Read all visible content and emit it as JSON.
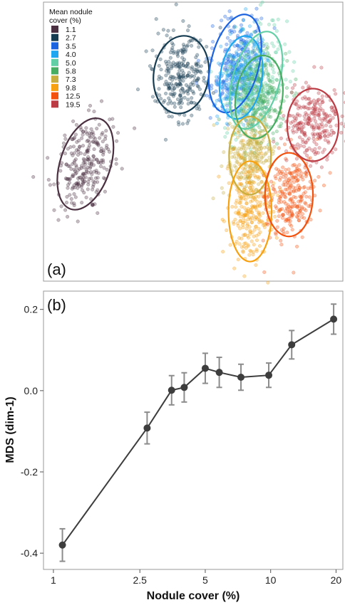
{
  "chart_data": [
    {
      "panel": "(a)",
      "type": "scatter",
      "legend": {
        "title_lines": [
          "Mean nodule",
          "cover (%)"
        ],
        "entries": [
          {
            "label": "1.1",
            "color": "#4a3040"
          },
          {
            "label": "2.7",
            "color": "#163c52"
          },
          {
            "label": "3.5",
            "color": "#1c63e0"
          },
          {
            "label": "4.0",
            "color": "#1ea6f0"
          },
          {
            "label": "5.0",
            "color": "#62cfa6"
          },
          {
            "label": "5.8",
            "color": "#46ad62"
          },
          {
            "label": "7.3",
            "color": "#c8ae3e"
          },
          {
            "label": "9.8",
            "color": "#f7a010"
          },
          {
            "label": "12.5",
            "color": "#f2510e"
          },
          {
            "label": "19.5",
            "color": "#bb3c44"
          }
        ],
        "position": "top-left"
      },
      "clusters": [
        {
          "label": "1.1",
          "cx": 0.14,
          "cy": 0.58,
          "rx": 0.084,
          "ry": 0.17,
          "tilt": 18
        },
        {
          "label": "2.7",
          "cx": 0.46,
          "cy": 0.26,
          "rx": 0.092,
          "ry": 0.14,
          "tilt": 8
        },
        {
          "label": "3.5",
          "cx": 0.64,
          "cy": 0.22,
          "rx": 0.08,
          "ry": 0.18,
          "tilt": 14
        },
        {
          "label": "4.0",
          "cx": 0.66,
          "cy": 0.27,
          "rx": 0.07,
          "ry": 0.15,
          "tilt": 8
        },
        {
          "label": "5.0",
          "cx": 0.71,
          "cy": 0.28,
          "rx": 0.078,
          "ry": 0.18,
          "tilt": 16
        },
        {
          "label": "5.8",
          "cx": 0.72,
          "cy": 0.34,
          "rx": 0.078,
          "ry": 0.15,
          "tilt": 8
        },
        {
          "label": "7.3",
          "cx": 0.69,
          "cy": 0.55,
          "rx": 0.07,
          "ry": 0.14,
          "tilt": 0
        },
        {
          "label": "9.8",
          "cx": 0.69,
          "cy": 0.75,
          "rx": 0.072,
          "ry": 0.18,
          "tilt": 0
        },
        {
          "label": "12.5",
          "cx": 0.82,
          "cy": 0.69,
          "rx": 0.08,
          "ry": 0.15,
          "tilt": 0
        },
        {
          "label": "19.5",
          "cx": 0.9,
          "cy": 0.44,
          "rx": 0.086,
          "ry": 0.13,
          "tilt": 0
        }
      ]
    },
    {
      "panel": "(b)",
      "type": "line",
      "xlabel": "Nodule cover (%)",
      "ylabel": "MDS (dim-1)",
      "x_scale": "log",
      "xlim": [
        0.9,
        21.5
      ],
      "ylim": [
        -0.44,
        0.245
      ],
      "x_ticks": [
        1,
        2.5,
        5,
        10,
        20
      ],
      "x_tick_labels": [
        "1",
        "2.5",
        "5",
        "10",
        "20"
      ],
      "y_ticks": [
        -0.4,
        -0.2,
        0.0,
        0.2
      ],
      "y_tick_labels": [
        "-0.4",
        "-0.2",
        "0.0",
        "0.2"
      ],
      "points": [
        {
          "x": 1.1,
          "y": -0.38,
          "err": 0.04
        },
        {
          "x": 2.7,
          "y": -0.092,
          "err": 0.039
        },
        {
          "x": 3.5,
          "y": 0.001,
          "err": 0.036
        },
        {
          "x": 4.0,
          "y": 0.008,
          "err": 0.036
        },
        {
          "x": 5.0,
          "y": 0.055,
          "err": 0.037
        },
        {
          "x": 5.8,
          "y": 0.045,
          "err": 0.037
        },
        {
          "x": 7.3,
          "y": 0.033,
          "err": 0.032
        },
        {
          "x": 9.8,
          "y": 0.038,
          "err": 0.03
        },
        {
          "x": 12.5,
          "y": 0.113,
          "err": 0.035
        },
        {
          "x": 19.5,
          "y": 0.176,
          "err": 0.037
        }
      ],
      "colors": {
        "line": "#3d3d3d",
        "point": "#3d3d3d",
        "errorbar": "#8c8c8c"
      }
    }
  ]
}
